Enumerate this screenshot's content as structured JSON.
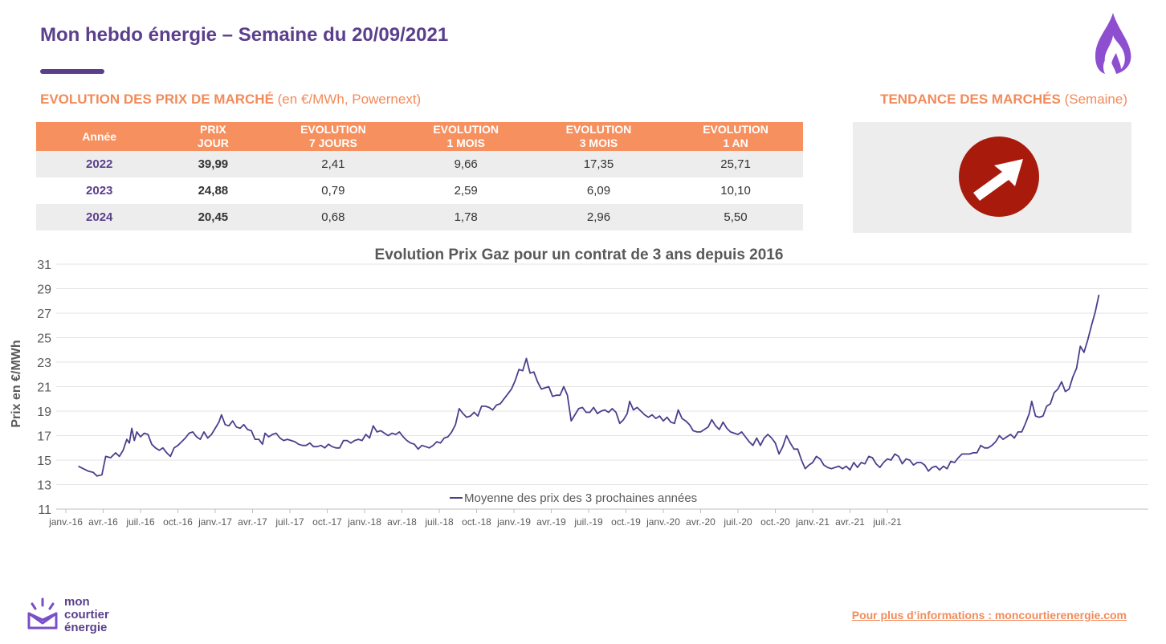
{
  "header": {
    "title": "Mon hebdo énergie – Semaine du 20/09/2021"
  },
  "market_prices": {
    "title_bold": "EVOLUTION DES PRIX DE MARCHÉ",
    "title_rest": " (en €/MWh, Powernext)",
    "columns": [
      "Année",
      "PRIX\nJOUR",
      "EVOLUTION\n7 JOURS",
      "EVOLUTION\n1 MOIS",
      "EVOLUTION\n3 MOIS",
      "EVOLUTION\n1 AN"
    ],
    "rows": [
      [
        "2022",
        "39,99",
        "2,41",
        "9,66",
        "17,35",
        "25,71"
      ],
      [
        "2023",
        "24,88",
        "0,79",
        "2,59",
        "6,09",
        "10,10"
      ],
      [
        "2024",
        "20,45",
        "0,68",
        "1,78",
        "2,96",
        "5,50"
      ]
    ]
  },
  "trend": {
    "title_bold": "TENDANCE DES MARCHÉS",
    "title_rest": " (Semaine)",
    "icon": "up-right-arrow-icon",
    "color": "#A81A0B"
  },
  "chart_data": {
    "type": "line",
    "title": "Evolution Prix Gaz pour un contrat de 3 ans depuis 2016",
    "xlabel": "",
    "ylabel": "Prix en €/MWh",
    "ylim": [
      11,
      31
    ],
    "yticks": [
      11,
      13,
      15,
      17,
      19,
      21,
      23,
      25,
      27,
      29,
      31
    ],
    "xticks": [
      "janv.-16",
      "avr.-16",
      "juil.-16",
      "oct.-16",
      "janv.-17",
      "avr.-17",
      "juil.-17",
      "oct.-17",
      "janv.-18",
      "avr.-18",
      "juil.-18",
      "oct.-18",
      "janv.-19",
      "avr.-19",
      "juil.-19",
      "oct.-19",
      "janv.-20",
      "avr.-20",
      "juil.-20",
      "oct.-20",
      "janv.-21",
      "avr.-21",
      "juil.-21"
    ],
    "grid": true,
    "legend": "bottom-center",
    "line_color": "#4B3F8C",
    "x_unit": "months since janv.-16",
    "series": [
      {
        "name": "Moyenne des prix des 3 prochaines années",
        "points": [
          [
            1.0,
            14.5
          ],
          [
            1.4,
            14.3
          ],
          [
            1.8,
            14.1
          ],
          [
            2.2,
            14.0
          ],
          [
            2.5,
            13.7
          ],
          [
            2.9,
            13.8
          ],
          [
            3.2,
            15.3
          ],
          [
            3.6,
            15.2
          ],
          [
            4.0,
            15.6
          ],
          [
            4.3,
            15.3
          ],
          [
            4.6,
            15.8
          ],
          [
            4.9,
            16.7
          ],
          [
            5.1,
            16.4
          ],
          [
            5.3,
            17.6
          ],
          [
            5.5,
            16.6
          ],
          [
            5.7,
            17.3
          ],
          [
            6.0,
            16.9
          ],
          [
            6.3,
            17.2
          ],
          [
            6.6,
            17.1
          ],
          [
            6.9,
            16.3
          ],
          [
            7.2,
            16.0
          ],
          [
            7.5,
            15.8
          ],
          [
            7.8,
            16.0
          ],
          [
            8.1,
            15.6
          ],
          [
            8.4,
            15.3
          ],
          [
            8.7,
            16.0
          ],
          [
            9.0,
            16.2
          ],
          [
            9.3,
            16.5
          ],
          [
            9.6,
            16.8
          ],
          [
            9.9,
            17.2
          ],
          [
            10.2,
            17.3
          ],
          [
            10.5,
            16.9
          ],
          [
            10.8,
            16.7
          ],
          [
            11.1,
            17.3
          ],
          [
            11.4,
            16.8
          ],
          [
            11.7,
            17.1
          ],
          [
            12.0,
            17.6
          ],
          [
            12.3,
            18.1
          ],
          [
            12.5,
            18.7
          ],
          [
            12.8,
            17.9
          ],
          [
            13.1,
            17.8
          ],
          [
            13.4,
            18.2
          ],
          [
            13.7,
            17.7
          ],
          [
            14.0,
            17.6
          ],
          [
            14.3,
            17.9
          ],
          [
            14.6,
            17.5
          ],
          [
            14.9,
            17.4
          ],
          [
            15.2,
            16.7
          ],
          [
            15.5,
            16.7
          ],
          [
            15.8,
            16.3
          ],
          [
            16.0,
            17.2
          ],
          [
            16.3,
            16.9
          ],
          [
            16.6,
            17.1
          ],
          [
            16.9,
            17.2
          ],
          [
            17.2,
            16.8
          ],
          [
            17.5,
            16.6
          ],
          [
            17.8,
            16.7
          ],
          [
            18.1,
            16.6
          ],
          [
            18.4,
            16.5
          ],
          [
            18.7,
            16.3
          ],
          [
            19.0,
            16.2
          ],
          [
            19.3,
            16.2
          ],
          [
            19.6,
            16.4
          ],
          [
            19.9,
            16.1
          ],
          [
            20.2,
            16.1
          ],
          [
            20.5,
            16.2
          ],
          [
            20.8,
            16.0
          ],
          [
            21.1,
            16.3
          ],
          [
            21.4,
            16.1
          ],
          [
            21.7,
            16.0
          ],
          [
            22.0,
            16.0
          ],
          [
            22.3,
            16.6
          ],
          [
            22.6,
            16.6
          ],
          [
            22.9,
            16.4
          ],
          [
            23.2,
            16.6
          ],
          [
            23.5,
            16.7
          ],
          [
            23.8,
            16.6
          ],
          [
            24.1,
            17.1
          ],
          [
            24.4,
            16.8
          ],
          [
            24.7,
            17.8
          ],
          [
            25.0,
            17.3
          ],
          [
            25.3,
            17.4
          ],
          [
            25.6,
            17.2
          ],
          [
            25.9,
            17.0
          ],
          [
            26.2,
            17.2
          ],
          [
            26.5,
            17.1
          ],
          [
            26.8,
            17.3
          ],
          [
            27.1,
            16.9
          ],
          [
            27.4,
            16.6
          ],
          [
            27.7,
            16.4
          ],
          [
            28.0,
            16.3
          ],
          [
            28.3,
            15.9
          ],
          [
            28.6,
            16.2
          ],
          [
            28.9,
            16.1
          ],
          [
            29.2,
            16.0
          ],
          [
            29.5,
            16.2
          ],
          [
            29.8,
            16.5
          ],
          [
            30.1,
            16.4
          ],
          [
            30.4,
            16.8
          ],
          [
            30.7,
            16.9
          ],
          [
            31.0,
            17.3
          ],
          [
            31.3,
            17.9
          ],
          [
            31.6,
            19.2
          ],
          [
            31.9,
            18.8
          ],
          [
            32.2,
            18.5
          ],
          [
            32.5,
            18.6
          ],
          [
            32.8,
            18.9
          ],
          [
            33.1,
            18.6
          ],
          [
            33.4,
            19.4
          ],
          [
            33.7,
            19.4
          ],
          [
            34.0,
            19.3
          ],
          [
            34.3,
            19.1
          ],
          [
            34.6,
            19.5
          ],
          [
            34.9,
            19.6
          ],
          [
            35.2,
            20.0
          ],
          [
            35.5,
            20.4
          ],
          [
            35.8,
            20.8
          ],
          [
            36.1,
            21.5
          ],
          [
            36.4,
            22.4
          ],
          [
            36.7,
            22.3
          ],
          [
            37.0,
            23.3
          ],
          [
            37.3,
            22.1
          ],
          [
            37.6,
            22.2
          ],
          [
            37.9,
            21.4
          ],
          [
            38.2,
            20.8
          ],
          [
            38.5,
            20.9
          ],
          [
            38.8,
            21.0
          ],
          [
            39.1,
            20.2
          ],
          [
            39.4,
            20.3
          ],
          [
            39.7,
            20.3
          ],
          [
            40.0,
            21.0
          ],
          [
            40.3,
            20.3
          ],
          [
            40.6,
            18.2
          ],
          [
            40.9,
            18.7
          ],
          [
            41.2,
            19.2
          ],
          [
            41.5,
            19.3
          ],
          [
            41.8,
            18.9
          ],
          [
            42.1,
            18.9
          ],
          [
            42.4,
            19.3
          ],
          [
            42.7,
            18.8
          ],
          [
            43.0,
            19.0
          ],
          [
            43.3,
            19.1
          ],
          [
            43.6,
            18.9
          ],
          [
            43.9,
            19.2
          ],
          [
            44.2,
            18.9
          ],
          [
            44.5,
            18.0
          ],
          [
            44.8,
            18.3
          ],
          [
            45.1,
            18.8
          ],
          [
            45.3,
            19.8
          ],
          [
            45.6,
            19.1
          ],
          [
            45.9,
            19.3
          ],
          [
            46.2,
            19.0
          ],
          [
            46.5,
            18.7
          ],
          [
            46.8,
            18.5
          ],
          [
            47.1,
            18.7
          ],
          [
            47.4,
            18.4
          ],
          [
            47.7,
            18.6
          ],
          [
            48.0,
            18.2
          ],
          [
            48.3,
            18.5
          ],
          [
            48.6,
            18.1
          ],
          [
            48.9,
            18.0
          ],
          [
            49.2,
            19.1
          ],
          [
            49.5,
            18.4
          ],
          [
            49.8,
            18.2
          ],
          [
            50.1,
            17.9
          ],
          [
            50.4,
            17.4
          ],
          [
            50.7,
            17.3
          ],
          [
            51.0,
            17.3
          ],
          [
            51.3,
            17.5
          ],
          [
            51.6,
            17.7
          ],
          [
            51.9,
            18.3
          ],
          [
            52.2,
            17.8
          ],
          [
            52.5,
            17.5
          ],
          [
            52.8,
            18.1
          ],
          [
            53.1,
            17.6
          ],
          [
            53.4,
            17.3
          ],
          [
            53.7,
            17.2
          ],
          [
            54.0,
            17.1
          ],
          [
            54.3,
            17.3
          ],
          [
            54.6,
            16.9
          ],
          [
            54.9,
            16.5
          ],
          [
            55.2,
            16.2
          ],
          [
            55.5,
            16.8
          ],
          [
            55.8,
            16.2
          ],
          [
            56.1,
            16.8
          ],
          [
            56.4,
            17.1
          ],
          [
            56.7,
            16.8
          ],
          [
            57.0,
            16.4
          ],
          [
            57.3,
            15.5
          ],
          [
            57.6,
            16.1
          ],
          [
            57.9,
            17.0
          ],
          [
            58.2,
            16.4
          ],
          [
            58.5,
            15.9
          ],
          [
            58.8,
            15.9
          ],
          [
            59.1,
            15.0
          ],
          [
            59.4,
            14.3
          ],
          [
            59.7,
            14.6
          ],
          [
            60.0,
            14.8
          ],
          [
            60.3,
            15.3
          ],
          [
            60.6,
            15.1
          ],
          [
            60.9,
            14.6
          ],
          [
            61.2,
            14.4
          ],
          [
            61.5,
            14.3
          ],
          [
            61.8,
            14.4
          ],
          [
            62.1,
            14.5
          ],
          [
            62.4,
            14.3
          ],
          [
            62.7,
            14.5
          ],
          [
            63.0,
            14.2
          ],
          [
            63.3,
            14.8
          ],
          [
            63.6,
            14.4
          ],
          [
            63.9,
            14.8
          ],
          [
            64.2,
            14.7
          ],
          [
            64.5,
            15.3
          ],
          [
            64.8,
            15.2
          ],
          [
            65.1,
            14.7
          ],
          [
            65.4,
            14.4
          ],
          [
            65.7,
            14.8
          ],
          [
            66.0,
            15.1
          ],
          [
            66.3,
            15.0
          ],
          [
            66.6,
            15.5
          ],
          [
            66.9,
            15.3
          ],
          [
            67.2,
            14.7
          ],
          [
            67.5,
            15.1
          ],
          [
            67.8,
            15.0
          ],
          [
            68.1,
            14.6
          ],
          [
            68.4,
            14.8
          ],
          [
            68.7,
            14.8
          ],
          [
            69.0,
            14.6
          ],
          [
            69.3,
            14.1
          ],
          [
            69.6,
            14.4
          ],
          [
            69.9,
            14.5
          ],
          [
            70.2,
            14.2
          ],
          [
            70.5,
            14.5
          ],
          [
            70.8,
            14.3
          ],
          [
            71.1,
            14.9
          ],
          [
            71.4,
            14.8
          ],
          [
            71.7,
            15.2
          ],
          [
            72.0,
            15.5
          ],
          [
            72.3,
            15.5
          ],
          [
            72.6,
            15.5
          ],
          [
            72.9,
            15.6
          ],
          [
            73.2,
            15.6
          ],
          [
            73.5,
            16.2
          ],
          [
            73.8,
            16.0
          ],
          [
            74.1,
            16.0
          ],
          [
            74.4,
            16.2
          ],
          [
            74.7,
            16.5
          ],
          [
            75.0,
            17.0
          ],
          [
            75.3,
            16.7
          ],
          [
            75.6,
            16.9
          ],
          [
            75.9,
            17.1
          ],
          [
            76.2,
            16.8
          ],
          [
            76.5,
            17.3
          ],
          [
            76.8,
            17.3
          ],
          [
            77.1,
            18.0
          ],
          [
            77.4,
            18.8
          ],
          [
            77.6,
            19.8
          ],
          [
            77.9,
            18.6
          ],
          [
            78.2,
            18.5
          ],
          [
            78.5,
            18.6
          ],
          [
            78.8,
            19.4
          ],
          [
            79.1,
            19.6
          ],
          [
            79.4,
            20.5
          ],
          [
            79.7,
            20.8
          ],
          [
            80.0,
            21.4
          ],
          [
            80.3,
            20.6
          ],
          [
            80.6,
            20.8
          ],
          [
            80.9,
            21.8
          ],
          [
            81.2,
            22.5
          ],
          [
            81.5,
            24.3
          ],
          [
            81.8,
            23.8
          ],
          [
            82.1,
            24.8
          ],
          [
            82.4,
            26.0
          ],
          [
            82.7,
            27.1
          ],
          [
            83.0,
            28.5
          ]
        ]
      }
    ]
  },
  "footer": {
    "logo_lines": [
      "mon",
      "courtier",
      "énergie"
    ],
    "link_text": "Pour plus d’informations : moncourtierenergie.com"
  }
}
